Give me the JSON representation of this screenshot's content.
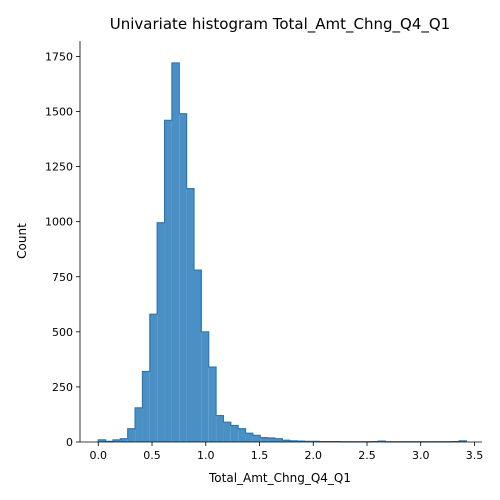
{
  "chart_data": {
    "type": "bar",
    "title": "Univariate histogram Total_Amt_Chng_Q4_Q1",
    "xlabel": "Total_Amt_Chng_Q4_Q1",
    "ylabel": "Count",
    "xlim": [
      -0.17,
      3.57
    ],
    "ylim": [
      0,
      1820
    ],
    "xticks": [
      0.0,
      0.5,
      1.0,
      1.5,
      2.0,
      2.5,
      3.0,
      3.5
    ],
    "xtick_labels": [
      "0.0",
      "0.5",
      "1.0",
      "1.5",
      "2.0",
      "2.5",
      "3.0",
      "3.5"
    ],
    "yticks": [
      0,
      250,
      500,
      750,
      1000,
      1250,
      1500,
      1750
    ],
    "ytick_labels": [
      "0",
      "250",
      "500",
      "750",
      "1000",
      "1250",
      "1500",
      "1750"
    ],
    "grid": false,
    "fill_color": "#4a90c4",
    "edge_color": "#2a78b8",
    "bin_width": 0.0685,
    "bin_edges_start": 0.0,
    "counts": [
      10,
      3,
      10,
      15,
      60,
      155,
      320,
      580,
      995,
      1460,
      1720,
      1490,
      1150,
      780,
      500,
      340,
      120,
      90,
      75,
      60,
      40,
      30,
      20,
      18,
      15,
      8,
      5,
      4,
      3,
      3,
      2,
      2,
      2,
      1,
      1,
      1,
      1,
      2,
      4,
      1,
      1,
      1,
      1,
      1,
      1,
      1,
      1,
      1,
      2,
      5
    ]
  }
}
